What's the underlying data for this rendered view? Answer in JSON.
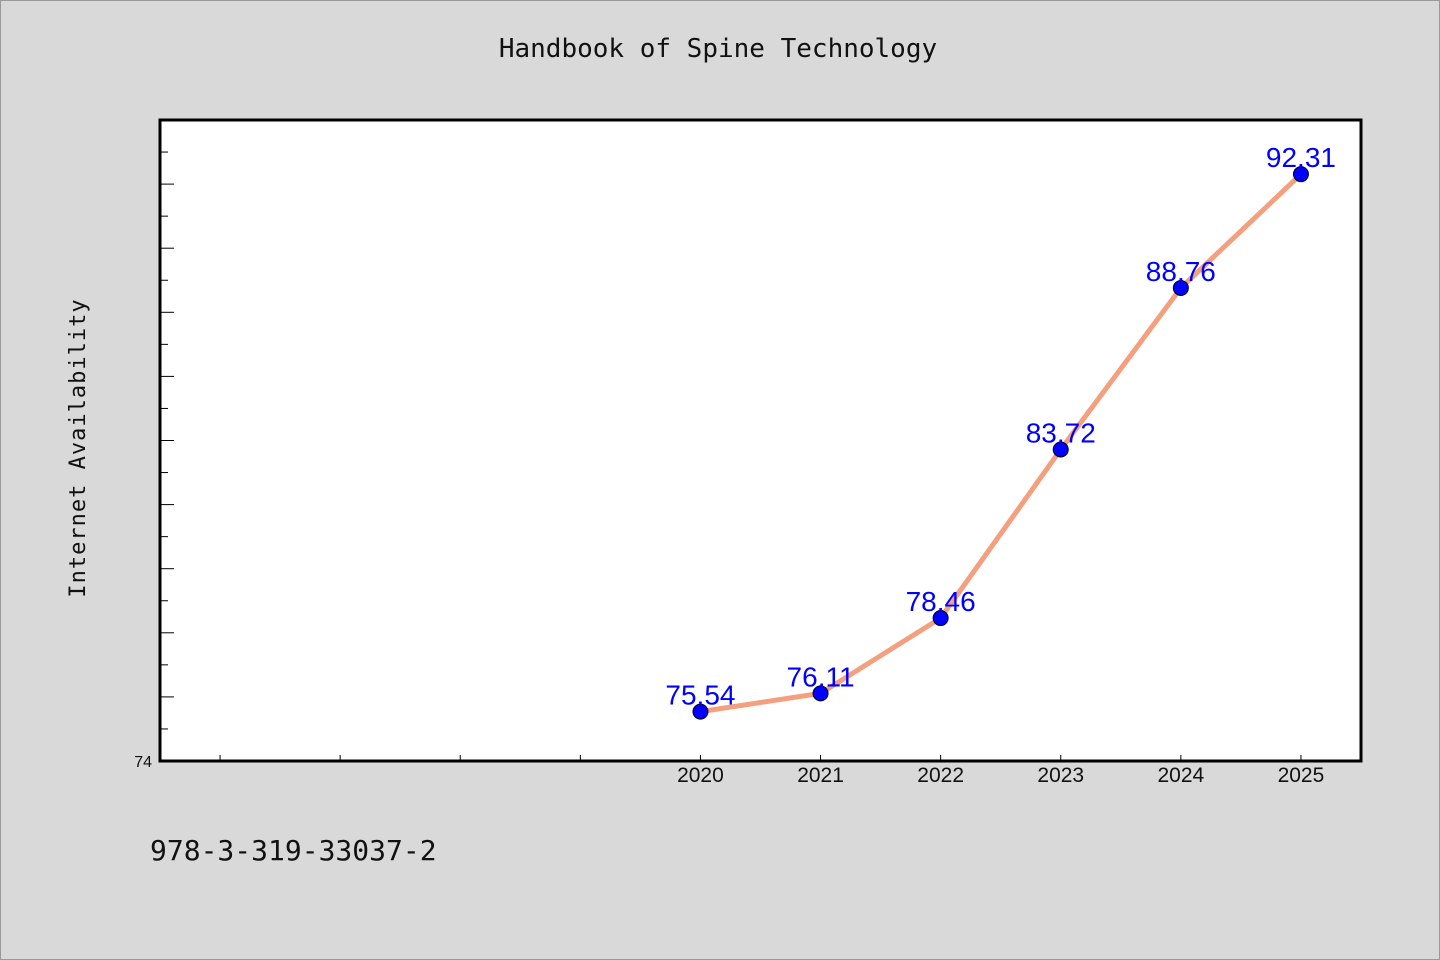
{
  "chart_data": {
    "type": "line",
    "title": "Handbook of Spine Technology",
    "xlabel": "",
    "ylabel": "Internet Availability",
    "x": [
      "2020",
      "2021",
      "2022",
      "2023",
      "2024",
      "2025"
    ],
    "x_axis_labels": [
      "2020",
      "2021",
      "2022",
      "2023",
      "2024",
      "2025"
    ],
    "xlim": [
      2015.5,
      2025.5
    ],
    "ylim": [
      74,
      94
    ],
    "y_tick_labels": [
      "74"
    ],
    "series": [
      {
        "values": [
          75.54,
          76.11,
          78.46,
          83.72,
          88.76,
          92.31
        ],
        "data_labels": [
          "75.54",
          "76.11",
          "78.46",
          "83.72",
          "88.76",
          "92.31"
        ],
        "line_color": "#f4a07e",
        "marker_color": "#0000ff"
      }
    ],
    "label_color": "#0000ff",
    "grid": false,
    "legend": "none"
  },
  "footnote": "978-3-319-33037-2"
}
